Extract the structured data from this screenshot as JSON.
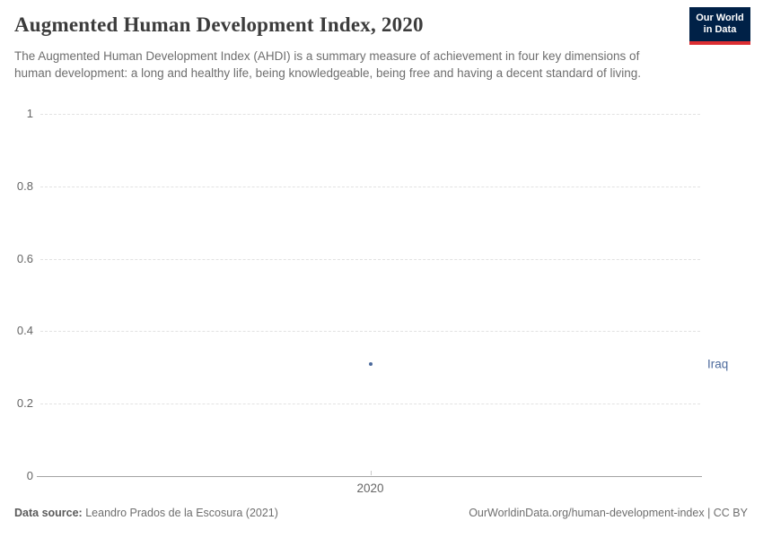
{
  "header": {
    "title": "Augmented Human Development Index, 2020",
    "subtitle": "The Augmented Human Development Index (AHDI) is a summary measure of achievement in four key dimensions of human development: a long and healthy life, being knowledgeable, being free and having a decent standard of living.",
    "logo": {
      "line1": "Our World",
      "line2": "in Data",
      "bg_color": "#002147",
      "stripe_color": "#dc2e32"
    }
  },
  "chart_data": {
    "type": "scatter",
    "x": [
      2020
    ],
    "series": [
      {
        "name": "Iraq",
        "values": [
          0.31
        ],
        "color": "#4C6A9C"
      }
    ],
    "title": "Augmented Human Development Index, 2020",
    "xlabel": "",
    "ylabel": "",
    "ylim": [
      0,
      1
    ],
    "yticks": [
      0,
      0.2,
      0.4,
      0.6,
      0.8,
      1
    ],
    "xticks": [
      "2020"
    ],
    "grid": "horizontal-dashed",
    "legend_position": "entity-label-right-of-plot",
    "colors": {
      "gridline": "#e2e2e2",
      "axis_line": "#a3a3a3",
      "tick_label": "#666666",
      "point": "#4C6A9C"
    }
  },
  "footer": {
    "datasource_label": "Data source:",
    "datasource_value": " Leandro Prados de la Escosura (2021)",
    "right_text": "OurWorldinData.org/human-development-index | CC BY"
  }
}
